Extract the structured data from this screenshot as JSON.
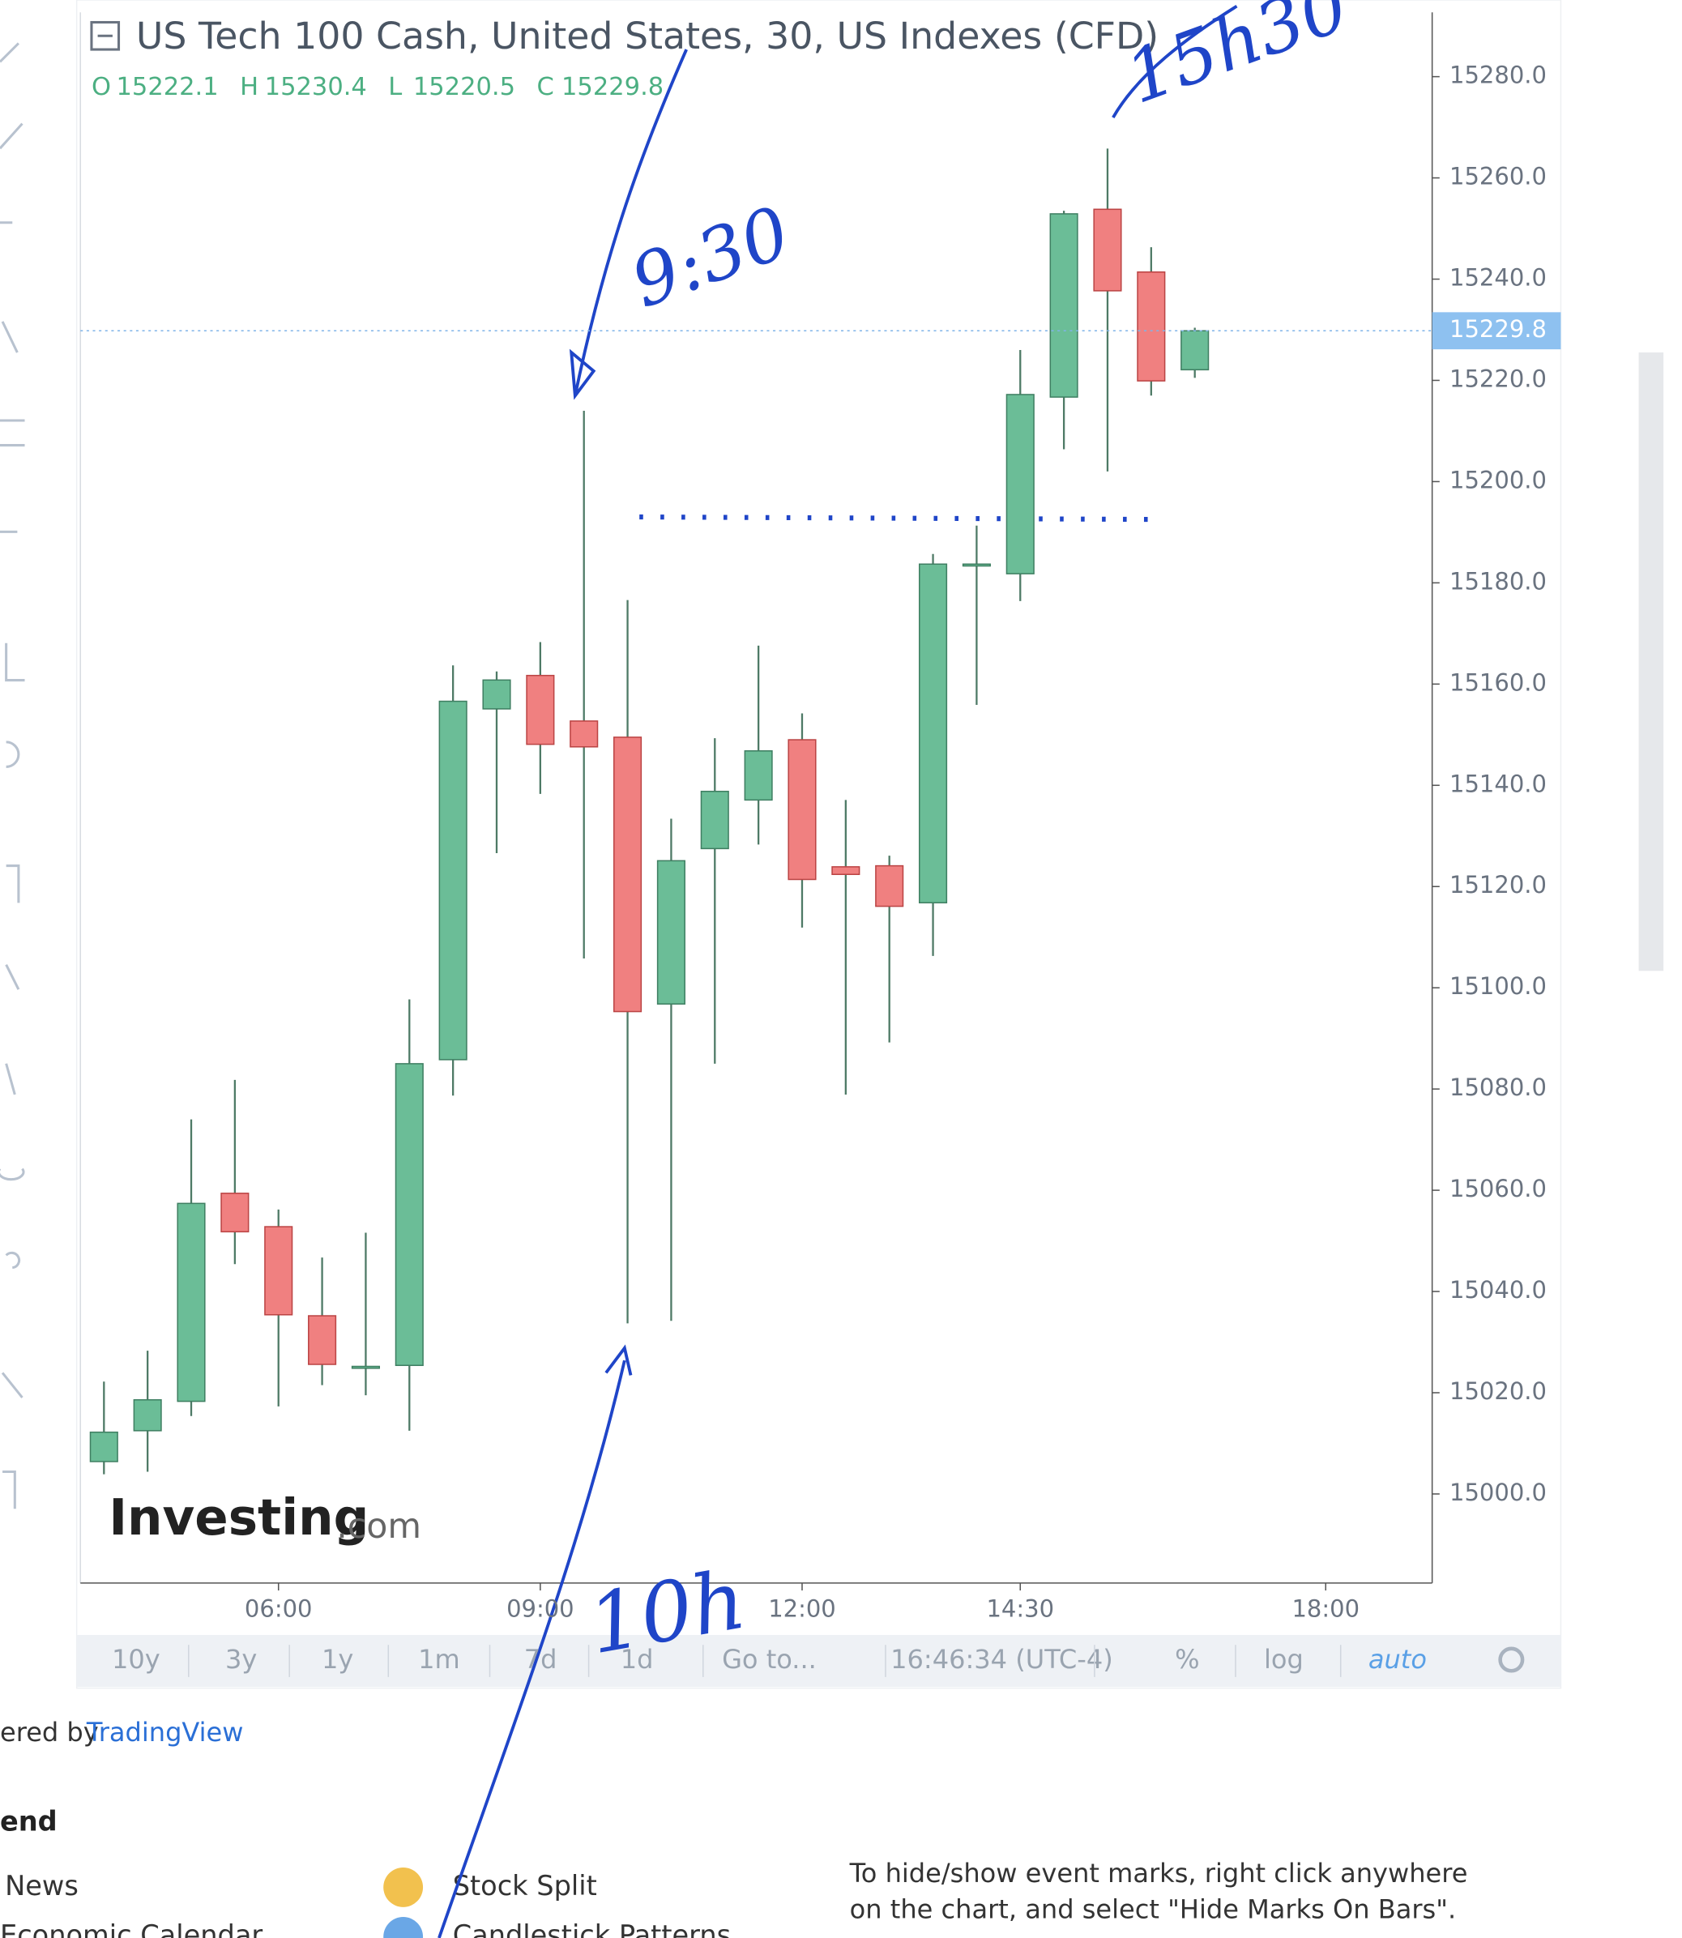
{
  "chart_data": {
    "type": "candlestick",
    "title": "US Tech 100 Cash, United States, 30, US Indexes (CFD)",
    "ohlc_letters": [
      "O",
      "H",
      "L",
      "C"
    ],
    "x": [
      4,
      4.5,
      5,
      5.5,
      6,
      6.5,
      7,
      7.5,
      8,
      8.5,
      9,
      9.5,
      10,
      10.5,
      11,
      11.5,
      12,
      12.5,
      13,
      13.5,
      14,
      14.5,
      15,
      15.5,
      16,
      16.5
    ],
    "open": [
      15006.4,
      15012.5,
      15018.3,
      15059.4,
      15052.8,
      15035.2,
      15025.2,
      15025.4,
      15085.8,
      15155.1,
      15161.7,
      15152.7,
      15149.5,
      15096.8,
      15127.5,
      15137.1,
      15149,
      15123.9,
      15124.1,
      15116.8,
      15183.7,
      15181.8,
      15216.7,
      15253.8,
      15241.4,
      15222.1
    ],
    "high": [
      15022.2,
      15028.3,
      15074,
      15081.8,
      15056.2,
      15046.7,
      15051.6,
      15097.7,
      15163.7,
      15162.5,
      15168.3,
      15214,
      15176.6,
      15133.4,
      15149.3,
      15167.6,
      15154.2,
      15137.1,
      15126.1,
      15185.7,
      15191.3,
      15226,
      15253.5,
      15265.8,
      15246.3,
      15230.4
    ],
    "low": [
      15003.9,
      15004.4,
      15015.4,
      15045.4,
      15017.3,
      15021.5,
      15019.5,
      15012.5,
      15078.7,
      15126.6,
      15138.3,
      15105.8,
      15033.7,
      15034.2,
      15085,
      15128.3,
      15111.9,
      15078.9,
      15089.2,
      15106.3,
      15155.9,
      15176.4,
      15206.4,
      15202,
      15217,
      15220.5
    ],
    "close": [
      15012.2,
      15018.6,
      15057.4,
      15051.8,
      15035.4,
      15025.6,
      15025.2,
      15085,
      15156.6,
      15160.8,
      15148.1,
      15147.6,
      15095.3,
      15125.1,
      15138.8,
      15146.8,
      15121.4,
      15122.4,
      15116.1,
      15183.7,
      15183.7,
      15217.2,
      15252.9,
      15237.7,
      15219.9,
      15229.8
    ],
    "up_color": "#6bbd97",
    "down_color": "#f08080",
    "wick_color": "#4e7a66",
    "xlim": [
      3.73,
      19.22
    ],
    "xticks": [
      {
        "value": 6,
        "label": "06:00"
      },
      {
        "value": 9,
        "label": "09:00"
      },
      {
        "value": 12,
        "label": "12:00"
      },
      {
        "value": 14.5,
        "label": "14:30"
      },
      {
        "value": 18,
        "label": "18:00"
      }
    ],
    "ylim": [
      14982.4,
      15292.7
    ],
    "yticks": [
      {
        "value": 15000,
        "label": "15000.0"
      },
      {
        "value": 15020,
        "label": "15020.0"
      },
      {
        "value": 15040,
        "label": "15040.0"
      },
      {
        "value": 15060,
        "label": "15060.0"
      },
      {
        "value": 15080,
        "label": "15080.0"
      },
      {
        "value": 15100,
        "label": "15100.0"
      },
      {
        "value": 15120,
        "label": "15120.0"
      },
      {
        "value": 15140,
        "label": "15140.0"
      },
      {
        "value": 15160,
        "label": "15160.0"
      },
      {
        "value": 15180,
        "label": "15180.0"
      },
      {
        "value": 15200,
        "label": "15200.0"
      },
      {
        "value": 15220,
        "label": "15220.0"
      },
      {
        "value": 15240,
        "label": "15240.0"
      },
      {
        "value": 15260,
        "label": "15260.0"
      },
      {
        "value": 15280,
        "label": "15280.0"
      }
    ],
    "annotations": [
      "9:30",
      "15h30",
      "10h"
    ]
  },
  "watermark": {
    "brand": "Investing",
    "suffix": ".com"
  },
  "toolbar": [
    "10y",
    "3y",
    "1y",
    "1m",
    "7d",
    "1d",
    "Go to...",
    "16:46:34 (UTC-4)",
    "%",
    "log",
    "auto"
  ],
  "credit": {
    "prefix": "ered by",
    "link": "TradingView"
  },
  "legend": {
    "title": "end",
    "items": [
      "News",
      "Stock Split",
      "Economic Calendar",
      "Candlestick Patterns"
    ],
    "note": [
      "To hide/show event marks, right click anywhere",
      "on the chart, and select \"Hide Marks On Bars\"."
    ]
  }
}
